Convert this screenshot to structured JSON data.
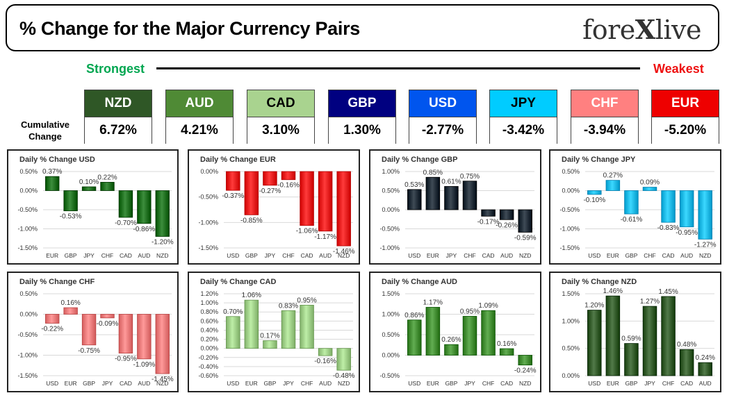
{
  "header": {
    "title": "% Change for the Major Currency Pairs",
    "logo_left": "fore",
    "logo_x": "X",
    "logo_right": "live"
  },
  "strength": {
    "strongest_label": "Strongest",
    "weakest_label": "Weakest",
    "cumulative_label_line1": "Cumulative",
    "cumulative_label_line2": "Change",
    "currencies": [
      {
        "name": "NZD",
        "value": "6.72%",
        "color": "#2f5726",
        "text_color": "#ffffff"
      },
      {
        "name": "AUD",
        "value": "4.21%",
        "color": "#4f8a35",
        "text_color": "#ffffff"
      },
      {
        "name": "CAD",
        "value": "3.10%",
        "color": "#a9d38f",
        "text_color": "#000000"
      },
      {
        "name": "GBP",
        "value": "1.30%",
        "color": "#000080",
        "text_color": "#ffffff"
      },
      {
        "name": "USD",
        "value": "-2.77%",
        "color": "#0055ee",
        "text_color": "#ffffff"
      },
      {
        "name": "JPY",
        "value": "-3.42%",
        "color": "#00ccff",
        "text_color": "#000000"
      },
      {
        "name": "CHF",
        "value": "-3.94%",
        "color": "#ff8080",
        "text_color": "#ffffff"
      },
      {
        "name": "EUR",
        "value": "-5.20%",
        "color": "#ee0000",
        "text_color": "#ffffff"
      }
    ]
  },
  "chart_data": [
    {
      "type": "bar",
      "title": "Daily % Change USD",
      "categories": [
        "EUR",
        "GBP",
        "JPY",
        "CHF",
        "CAD",
        "AUD",
        "NZD"
      ],
      "values": [
        0.37,
        -0.53,
        0.1,
        0.22,
        -0.7,
        -0.86,
        -1.2
      ],
      "value_labels": [
        "0.37%",
        "-0.53%",
        "0.10%",
        "0.22%",
        "-0.70%",
        "-0.86%",
        "-1.20%"
      ],
      "ylim": [
        -1.5,
        0.5
      ],
      "ticks": [
        0.5,
        0,
        -0.5,
        -1,
        -1.5
      ],
      "tick_labels": [
        "0.50%",
        "0.00%",
        "-0.50%",
        "-1.00%",
        "-1.50%"
      ],
      "color": "#1a6b1a"
    },
    {
      "type": "bar",
      "title": "Daily % Change EUR",
      "categories": [
        "USD",
        "GBP",
        "JPY",
        "CHF",
        "CAD",
        "AUD",
        "NZD"
      ],
      "values": [
        -0.37,
        -0.85,
        -0.27,
        -0.16,
        -1.06,
        -1.17,
        -1.46
      ],
      "value_labels": [
        "-0.37%",
        "-0.85%",
        "-0.27%",
        "-0.16%",
        "-1.06%",
        "-1.17%",
        "-1.46%"
      ],
      "ylim": [
        -1.5,
        0
      ],
      "ticks": [
        0,
        -0.5,
        -1,
        -1.5
      ],
      "tick_labels": [
        "0.00%",
        "-0.50%",
        "-1.00%",
        "-1.50%"
      ],
      "color": "#e81818"
    },
    {
      "type": "bar",
      "title": "Daily % Change GBP",
      "categories": [
        "USD",
        "EUR",
        "JPY",
        "CHF",
        "CAD",
        "AUD",
        "NZD"
      ],
      "values": [
        0.53,
        0.85,
        0.61,
        0.75,
        -0.17,
        -0.26,
        -0.59
      ],
      "value_labels": [
        "0.53%",
        "0.85%",
        "0.61%",
        "0.75%",
        "-0.17%",
        "-0.26%",
        "-0.59%"
      ],
      "ylim": [
        -1.0,
        1.0
      ],
      "ticks": [
        1,
        0.5,
        0,
        -0.5,
        -1
      ],
      "tick_labels": [
        "1.00%",
        "0.50%",
        "0.00%",
        "-0.50%",
        "-1.00%"
      ],
      "color": "#1c2833"
    },
    {
      "type": "bar",
      "title": "Daily % Change JPY",
      "categories": [
        "USD",
        "EUR",
        "GBP",
        "CHF",
        "CAD",
        "AUD",
        "NZD"
      ],
      "values": [
        -0.1,
        0.27,
        -0.61,
        0.09,
        -0.83,
        -0.95,
        -1.27
      ],
      "value_labels": [
        "-0.10%",
        "0.27%",
        "-0.61%",
        "0.09%",
        "-0.83%",
        "-0.95%",
        "-1.27%"
      ],
      "ylim": [
        -1.5,
        0.5
      ],
      "ticks": [
        0.5,
        0,
        -0.5,
        -1,
        -1.5
      ],
      "tick_labels": [
        "0.50%",
        "0.00%",
        "-0.50%",
        "-1.00%",
        "-1.50%"
      ],
      "color": "#19b5e6"
    },
    {
      "type": "bar",
      "title": "Daily % Change CHF",
      "categories": [
        "USD",
        "EUR",
        "GBP",
        "JPY",
        "CAD",
        "AUD",
        "NZD"
      ],
      "values": [
        -0.22,
        0.16,
        -0.75,
        -0.09,
        -0.95,
        -1.09,
        -1.45
      ],
      "value_labels": [
        "-0.22%",
        "0.16%",
        "-0.75%",
        "-0.09%",
        "-0.95%",
        "-1.09%",
        "-1.45%"
      ],
      "ylim": [
        -1.5,
        0.5
      ],
      "ticks": [
        0.5,
        0,
        -0.5,
        -1,
        -1.5
      ],
      "tick_labels": [
        "0.50%",
        "0.00%",
        "-0.50%",
        "-1.00%",
        "-1.50%"
      ],
      "color": "#ee7777"
    },
    {
      "type": "bar",
      "title": "Daily % Change CAD",
      "categories": [
        "USD",
        "EUR",
        "GBP",
        "JPY",
        "CHF",
        "AUD",
        "NZD"
      ],
      "values": [
        0.7,
        1.06,
        0.17,
        0.83,
        0.95,
        -0.16,
        -0.48
      ],
      "value_labels": [
        "0.70%",
        "1.06%",
        "0.17%",
        "0.83%",
        "0.95%",
        "-0.16%",
        "-0.48%"
      ],
      "ylim": [
        -0.6,
        1.2
      ],
      "ticks": [
        1.2,
        1,
        0.8,
        0.6,
        0.4,
        0.2,
        0,
        -0.2,
        -0.4,
        -0.6
      ],
      "tick_labels": [
        "1.20%",
        "1.00%",
        "0.80%",
        "0.60%",
        "0.40%",
        "0.20%",
        "0.00%",
        "-0.20%",
        "-0.40%",
        "-0.60%"
      ],
      "color": "#9bcb84"
    },
    {
      "type": "bar",
      "title": "Daily % Change AUD",
      "categories": [
        "USD",
        "EUR",
        "GBP",
        "JPY",
        "CHF",
        "CAD",
        "NZD"
      ],
      "values": [
        0.86,
        1.17,
        0.26,
        0.95,
        1.09,
        0.16,
        -0.24
      ],
      "value_labels": [
        "0.86%",
        "1.17%",
        "0.26%",
        "0.95%",
        "1.09%",
        "0.16%",
        "-0.24%"
      ],
      "ylim": [
        -0.5,
        1.5
      ],
      "ticks": [
        1.5,
        1,
        0.5,
        0,
        -0.5
      ],
      "tick_labels": [
        "1.50%",
        "1.00%",
        "0.50%",
        "0.00%",
        "-0.50%"
      ],
      "color": "#3f8a2f"
    },
    {
      "type": "bar",
      "title": "Daily % Change NZD",
      "categories": [
        "USD",
        "EUR",
        "GBP",
        "JPY",
        "CHF",
        "CAD",
        "AUD"
      ],
      "values": [
        1.2,
        1.46,
        0.59,
        1.27,
        1.45,
        0.48,
        0.24
      ],
      "value_labels": [
        "1.20%",
        "1.46%",
        "0.59%",
        "1.27%",
        "1.45%",
        "0.48%",
        "0.24%"
      ],
      "ylim": [
        0,
        1.5
      ],
      "ticks": [
        1.5,
        1,
        0.5,
        0
      ],
      "tick_labels": [
        "1.50%",
        "1.00%",
        "0.50%",
        "0.00%"
      ],
      "color": "#2f5726"
    }
  ]
}
